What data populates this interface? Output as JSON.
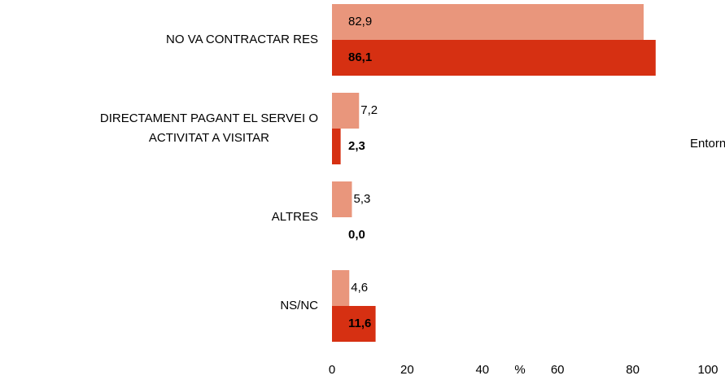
{
  "chart_data": {
    "type": "hbar",
    "categories": [
      "NO VA CONTRACTAR RES",
      "DIRECTAMENT PAGANT EL SERVEI O\nACTIVITAT A VISITAR",
      "ALTRES",
      "NS/NC"
    ],
    "series": [
      {
        "color": "#e9967c",
        "values": [
          82.9,
          7.2,
          5.3,
          4.6
        ],
        "value_labels": [
          "82,9",
          "7,2",
          "5,3",
          "4,6"
        ]
      },
      {
        "name": "Entorn",
        "color": "#d63012",
        "values": [
          86.1,
          2.3,
          0.0,
          11.6
        ],
        "value_labels": [
          "86,1",
          "2,3",
          "0,0",
          "11,6"
        ]
      }
    ],
    "xlabel": "%",
    "xlim": [
      0,
      100
    ],
    "xticks": [
      0,
      20,
      40,
      60,
      80,
      100
    ]
  }
}
